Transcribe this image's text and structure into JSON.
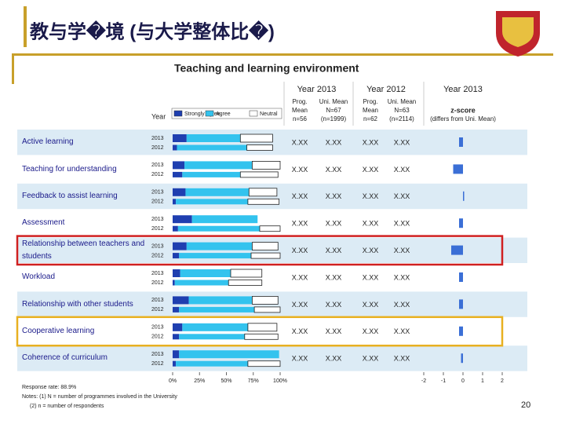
{
  "slide": {
    "title": "教与学�境 (与大学整体比�)",
    "page_number": "20"
  },
  "chart_data": {
    "type": "bar",
    "title": "Teaching and learning environment",
    "year_header": "Year",
    "years": [
      "2013",
      "2012"
    ],
    "categories": [
      "Active learning",
      "Teaching for understanding",
      "Feedback to assist learning",
      "Assessment",
      "Relationship between teachers and students",
      "Workload",
      "Relationship with other students",
      "Cooperative learning",
      "Coherence of curriculum"
    ],
    "series": [
      {
        "name": "Strongly agree",
        "color": "#1f3fb0",
        "values": [
          [
            13,
            4
          ],
          [
            11,
            9
          ],
          [
            12,
            3
          ],
          [
            18,
            5
          ],
          [
            13,
            6
          ],
          [
            7,
            2
          ],
          [
            15,
            6
          ],
          [
            9,
            6
          ],
          [
            6,
            3
          ]
        ]
      },
      {
        "name": "Agree",
        "color": "#33c3ee",
        "values": [
          [
            50,
            65
          ],
          [
            63,
            54
          ],
          [
            59,
            67
          ],
          [
            61,
            76
          ],
          [
            61,
            67
          ],
          [
            47,
            50
          ],
          [
            59,
            70
          ],
          [
            61,
            61
          ],
          [
            93,
            67
          ]
        ]
      },
      {
        "name": "Neutral",
        "color": "#ffffff",
        "values": [
          [
            30,
            24
          ],
          [
            26,
            35
          ],
          [
            26,
            29
          ],
          [
            0,
            19
          ],
          [
            24,
            27
          ],
          [
            29,
            31
          ],
          [
            24,
            24
          ],
          [
            27,
            31
          ],
          [
            0,
            30
          ]
        ]
      }
    ],
    "xlim": [
      0,
      100
    ],
    "xticks": [
      {
        "value": 0,
        "label": "0%"
      },
      {
        "value": 25,
        "label": "25%"
      },
      {
        "value": 50,
        "label": "50%"
      },
      {
        "value": 75,
        "label": "75%"
      },
      {
        "value": 100,
        "label": "100%"
      }
    ],
    "table": {
      "groups": [
        {
          "label": "Year 2013",
          "columns": [
            [
              "Prog.",
              "Mean",
              "n=56"
            ],
            [
              "Uni. Mean",
              "N=67",
              "(n=1999)"
            ]
          ]
        },
        {
          "label": "Year 2012",
          "columns": [
            [
              "Prog.",
              "Mean",
              "n=62"
            ],
            [
              "Uni. Mean",
              "N=63",
              "(n=2114)"
            ]
          ]
        }
      ],
      "rows": [
        [
          "X.XX",
          "X.XX",
          "X.XX",
          "X.XX"
        ],
        [
          "X.XX",
          "X.XX",
          "X.XX",
          "X.XX"
        ],
        [
          "X.XX",
          "X.XX",
          "X.XX",
          "X.XX"
        ],
        [
          "X.XX",
          "X.XX",
          "X.XX",
          "X.XX"
        ],
        [
          "X.XX",
          "X.XX",
          "X.XX",
          "X.XX"
        ],
        [
          "X.XX",
          "X.XX",
          "X.XX",
          "X.XX"
        ],
        [
          "X.XX",
          "X.XX",
          "X.XX",
          "X.XX"
        ],
        [
          "X.XX",
          "X.XX",
          "X.XX",
          "X.XX"
        ],
        [
          "X.XX",
          "X.XX",
          "X.XX",
          "X.XX"
        ]
      ]
    },
    "z_score": {
      "group_label": "Year 2013",
      "title": "z-score",
      "subtitle": "(differs from Uni. Mean)",
      "color": "#3b6fd6",
      "values": [
        -0.2,
        -0.5,
        0.05,
        -0.2,
        -0.6,
        -0.2,
        -0.2,
        -0.2,
        -0.1
      ],
      "xlim": [
        -2,
        2
      ],
      "xticks": [
        -2,
        -1,
        0,
        1,
        2
      ]
    },
    "notes": [
      "Response rate: 88.9%",
      "Notes: (1) N = number of programmes involved in the University",
      "(2) n = number of respondents"
    ]
  }
}
